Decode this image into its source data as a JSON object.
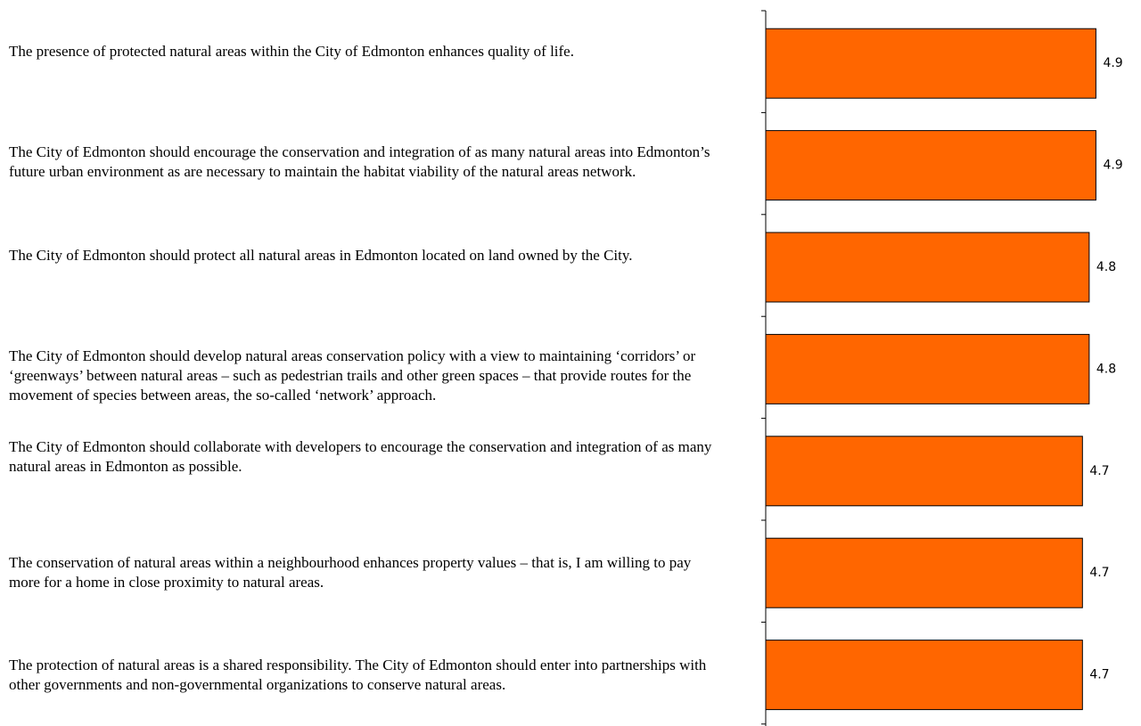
{
  "chart_data": {
    "type": "barh",
    "categories": [
      "The presence of protected natural areas within the City of Edmonton enhances quality of life.",
      "The City of Edmonton should encourage the conservation and integration of as many natural areas into Edmonton’s future urban environment as are necessary to maintain the habitat viability of the natural areas network.",
      "The City of Edmonton should protect all natural areas in Edmonton located on land owned by the City.",
      "The City of Edmonton should develop natural areas conservation policy with a view to maintaining ‘corridors’ or ‘greenways’ between natural areas – such as pedestrian trails and other green spaces – that provide routes for the movement of species between areas, the so-called ‘network’ approach.",
      "The City of Edmonton should collaborate with developers to encourage the conservation and integration of as many natural areas in Edmonton as possible.",
      "The conservation of natural areas within a neighbourhood enhances property values – that is, I am willing to pay more for a home in close proximity to natural areas.",
      "The protection of natural areas is a shared responsibility. The City of Edmonton should enter into partnerships with other governments and non-governmental organizations to conserve natural areas."
    ],
    "values": [
      4.9,
      4.9,
      4.8,
      4.8,
      4.7,
      4.7,
      4.7
    ],
    "color": "#ff6600",
    "xlim": [
      0,
      5
    ]
  }
}
